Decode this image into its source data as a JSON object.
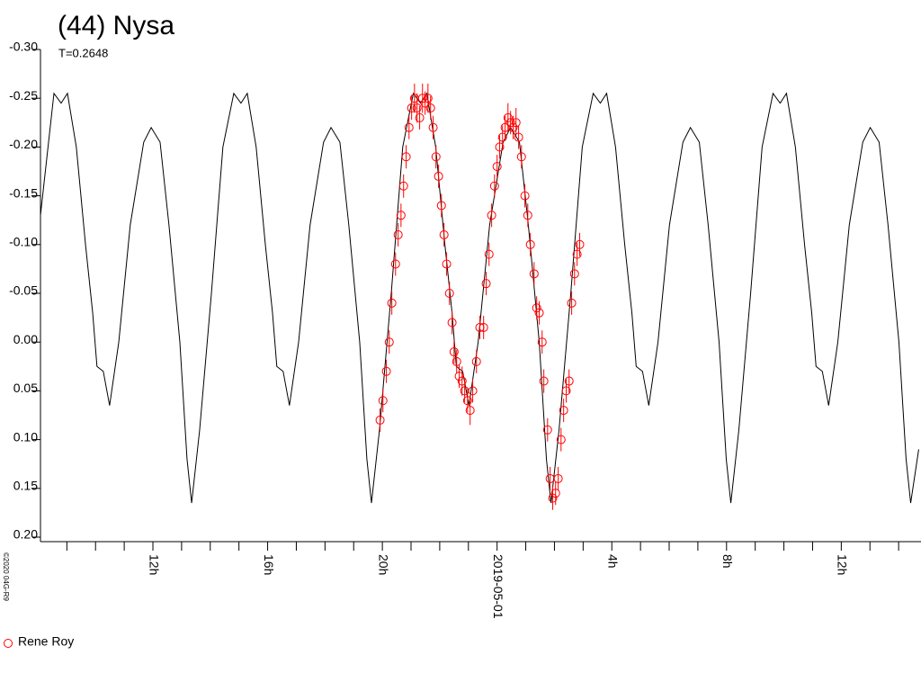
{
  "chart_data": {
    "type": "line",
    "title": "(44) Nysa",
    "subtitle": "T=0.2648",
    "credit": "©2020 04G-R9",
    "xlim": [
      -15.92,
      14.78
    ],
    "ylim": [
      -0.3,
      0.2
    ],
    "yreverse": true,
    "xticks": [
      {
        "value": -12,
        "label": "12h"
      },
      {
        "value": -8,
        "label": "16h"
      },
      {
        "value": -4,
        "label": "20h"
      },
      {
        "value": 0,
        "label": "2019-05-01"
      },
      {
        "value": 4,
        "label": "4h"
      },
      {
        "value": 8,
        "label": "8h"
      },
      {
        "value": 12,
        "label": "12h"
      }
    ],
    "xminorticks": [
      -15,
      -14,
      -13,
      -11,
      -10,
      -9,
      -7,
      -6,
      -5,
      -3,
      -2,
      -1,
      1,
      2,
      3,
      5,
      6,
      7,
      9,
      10,
      11,
      13,
      14
    ],
    "yticks": [
      {
        "value": -0.3,
        "label": "-0.30"
      },
      -0.25,
      {
        "value": -0.2,
        "label": "-0.20"
      },
      -0.15,
      {
        "value": -0.1,
        "label": "-0.10"
      },
      -0.05,
      {
        "value": 0,
        "label": "0.00"
      },
      0.05,
      {
        "value": 0.1,
        "label": "0.10"
      },
      0.15,
      {
        "value": 0.2,
        "label": "0.20"
      }
    ],
    "series": [
      {
        "type": "line",
        "color": "#000000",
        "x": [
          -15.92,
          -15.45,
          -15.2,
          -14.98,
          -14.67,
          -14.35,
          -14.1,
          -13.95,
          -13.73,
          -13.51,
          -13.19,
          -12.79,
          -12.32,
          -12.06,
          -11.75,
          -11.44,
          -11.06,
          -10.81,
          -10.65,
          -10.37,
          -9.96,
          -9.56,
          -9.18,
          -8.93,
          -8.71,
          -8.4,
          -8.08,
          -7.83,
          -7.68,
          -7.46,
          -7.24,
          -6.92,
          -6.52,
          -6.05,
          -5.79,
          -5.48,
          -5.17,
          -4.79,
          -4.54,
          -4.38,
          -4.1,
          -3.69,
          -3.29,
          -2.92,
          -2.67,
          -2.45,
          -2.14,
          -1.82,
          -1.57,
          -1.42,
          -1.2,
          -0.98,
          -0.66,
          -0.26,
          0.21,
          0.47,
          0.78,
          1.09,
          1.47,
          1.72,
          1.88,
          2.16,
          2.57,
          2.97,
          3.35,
          3.6,
          3.82,
          4.13,
          4.45,
          4.7,
          4.85,
          5.07,
          5.29,
          5.61,
          6.01,
          6.48,
          6.74,
          7.05,
          7.36,
          7.74,
          7.99,
          8.15,
          8.43,
          8.84,
          9.24,
          9.62,
          9.87,
          10.09,
          10.4,
          10.72,
          10.97,
          11.12,
          11.34,
          11.56,
          11.88,
          12.28,
          12.75,
          13.01,
          13.32,
          13.63,
          14.01,
          14.26,
          14.42,
          14.7
        ],
        "values": [
          -0.13,
          -0.255,
          -0.245,
          -0.255,
          -0.2,
          -0.1,
          -0.03,
          0.025,
          0.03,
          0.065,
          0.0,
          -0.12,
          -0.205,
          -0.22,
          -0.205,
          -0.12,
          0.0,
          0.12,
          0.165,
          0.09,
          -0.05,
          -0.2,
          -0.255,
          -0.245,
          -0.255,
          -0.2,
          -0.1,
          -0.03,
          0.025,
          0.03,
          0.065,
          0.0,
          -0.12,
          -0.205,
          -0.22,
          -0.205,
          -0.12,
          0.0,
          0.12,
          0.165,
          0.09,
          -0.05,
          -0.2,
          -0.255,
          -0.245,
          -0.255,
          -0.2,
          -0.1,
          -0.03,
          0.025,
          0.03,
          0.065,
          0.0,
          -0.12,
          -0.205,
          -0.22,
          -0.205,
          -0.12,
          0.0,
          0.12,
          0.165,
          0.09,
          -0.05,
          -0.2,
          -0.255,
          -0.245,
          -0.255,
          -0.2,
          -0.1,
          -0.03,
          0.025,
          0.03,
          0.065,
          0.0,
          -0.12,
          -0.205,
          -0.22,
          -0.205,
          -0.12,
          0.0,
          0.12,
          0.165,
          0.09,
          -0.05,
          -0.2,
          -0.255,
          -0.245,
          -0.255,
          -0.2,
          -0.1,
          -0.03,
          0.025,
          0.03,
          0.065,
          0.0,
          -0.12,
          -0.205,
          -0.22,
          -0.205,
          -0.12,
          0.0,
          0.12,
          0.165,
          0.11
        ]
      },
      {
        "type": "scatter",
        "name": "Rene Roy",
        "color": "#ff0000",
        "x": [
          -4.08,
          -3.98,
          -3.86,
          -3.76,
          -3.67,
          -3.54,
          -3.45,
          -3.35,
          -3.26,
          -3.17,
          -3.07,
          -2.98,
          -2.88,
          -2.79,
          -2.7,
          -2.6,
          -2.51,
          -2.41,
          -2.32,
          -2.23,
          -2.13,
          -2.04,
          -1.94,
          -1.85,
          -1.76,
          -1.66,
          -1.57,
          -1.5,
          -1.41,
          -1.32,
          -1.22,
          -1.13,
          -1.03,
          -0.94,
          -0.85,
          -0.72,
          -0.6,
          -0.47,
          -0.38,
          -0.28,
          -0.19,
          -0.09,
          0.0,
          0.09,
          0.19,
          0.28,
          0.38,
          0.47,
          0.56,
          0.66,
          0.75,
          0.85,
          0.97,
          1.07,
          1.16,
          1.29,
          1.38,
          1.47,
          1.57,
          1.63,
          1.76,
          1.85,
          1.94,
          2.04,
          2.13,
          2.23,
          2.32,
          2.41,
          2.51,
          2.6,
          2.7,
          2.79,
          2.88
        ],
        "values": [
          0.08,
          0.06,
          0.03,
          0.0,
          -0.04,
          -0.08,
          -0.11,
          -0.13,
          -0.16,
          -0.19,
          -0.22,
          -0.24,
          -0.25,
          -0.24,
          -0.23,
          -0.25,
          -0.245,
          -0.25,
          -0.24,
          -0.22,
          -0.19,
          -0.17,
          -0.14,
          -0.11,
          -0.08,
          -0.05,
          -0.02,
          0.01,
          0.02,
          0.035,
          0.04,
          0.05,
          0.06,
          0.07,
          0.05,
          0.02,
          -0.015,
          -0.015,
          -0.06,
          -0.09,
          -0.13,
          -0.16,
          -0.18,
          -0.2,
          -0.21,
          -0.22,
          -0.23,
          -0.225,
          -0.22,
          -0.225,
          -0.21,
          -0.19,
          -0.15,
          -0.13,
          -0.1,
          -0.07,
          -0.035,
          -0.03,
          0.0,
          0.04,
          0.09,
          0.14,
          0.16,
          0.155,
          0.14,
          0.1,
          0.07,
          0.05,
          0.04,
          -0.04,
          -0.07,
          -0.09,
          -0.1
        ],
        "errors": [
          0.012,
          0.012,
          0.012,
          0.012,
          0.012,
          0.012,
          0.012,
          0.012,
          0.012,
          0.012,
          0.012,
          0.012,
          0.015,
          0.015,
          0.012,
          0.015,
          0.012,
          0.015,
          0.012,
          0.012,
          0.012,
          0.012,
          0.012,
          0.012,
          0.012,
          0.012,
          0.012,
          0.012,
          0.012,
          0.012,
          0.015,
          0.012,
          0.012,
          0.015,
          0.012,
          0.012,
          0.012,
          0.012,
          0.012,
          0.012,
          0.012,
          0.012,
          0.012,
          0.012,
          0.012,
          0.012,
          0.015,
          0.012,
          0.012,
          0.015,
          0.012,
          0.012,
          0.012,
          0.012,
          0.012,
          0.012,
          0.012,
          0.012,
          0.012,
          0.012,
          0.012,
          0.012,
          0.012,
          0.012,
          0.012,
          0.012,
          0.012,
          0.012,
          0.012,
          0.012,
          0.012,
          0.012,
          0.012
        ]
      }
    ]
  }
}
